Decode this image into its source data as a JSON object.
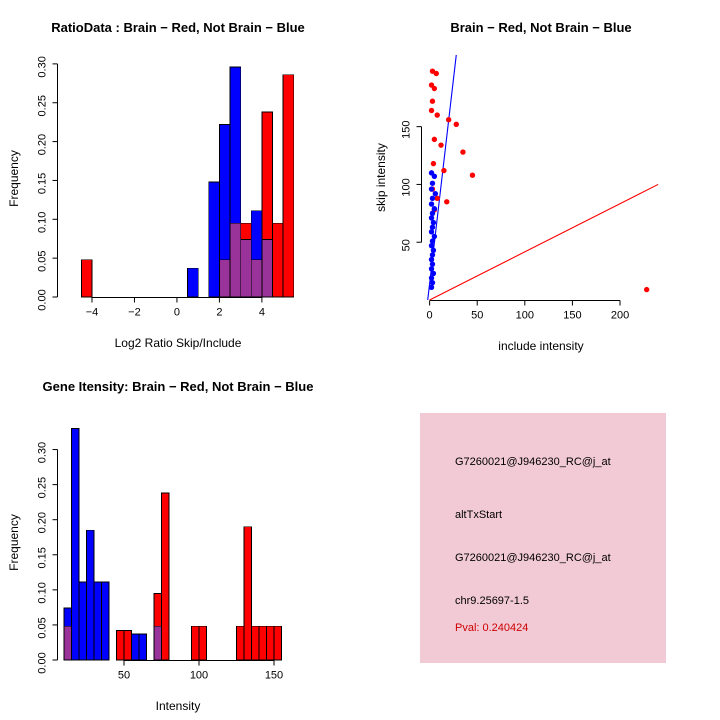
{
  "colors": {
    "red": "#FF0000",
    "blue": "#0000FF",
    "overlap": "#993399",
    "black": "#000000",
    "pval_red": "#CC0000",
    "info_bg": "#F2CAD5",
    "axis": "#000000",
    "background": "#FFFFFF"
  },
  "chart_data": [
    {
      "id": "ratio_hist",
      "type": "bar",
      "title": "RatioData : Brain − Red, Not Brain − Blue",
      "xlabel": "Log2 Ratio Skip/Include",
      "ylabel": "Frequency",
      "xlim": [
        -5.6,
        5.7
      ],
      "ylim": [
        0,
        0.305
      ],
      "xticks": [
        -4,
        -2,
        0,
        2,
        4
      ],
      "xtick_labels": [
        "−4",
        "−2",
        "0",
        "2",
        "4"
      ],
      "yticks": [
        0,
        0.05,
        0.1,
        0.15,
        0.2,
        0.25,
        0.3
      ],
      "ytick_labels": [
        "0.00",
        "0.05",
        "0.10",
        "0.15",
        "0.20",
        "0.25",
        "0.30"
      ],
      "legend_note": "Brain = red, Not Brain = blue, overlap = purple",
      "series": [
        {
          "name": "not_brain_blue",
          "color_key": "blue",
          "bins": [
            {
              "x": 0.5,
              "w": 0.5,
              "h": 0.037
            },
            {
              "x": 1.5,
              "w": 0.5,
              "h": 0.148
            },
            {
              "x": 2.0,
              "w": 0.5,
              "h": 0.222
            },
            {
              "x": 2.5,
              "w": 0.5,
              "h": 0.296
            },
            {
              "x": 3.0,
              "w": 0.5,
              "h": 0.074
            },
            {
              "x": 3.5,
              "w": 0.5,
              "h": 0.111
            },
            {
              "x": 4.0,
              "w": 0.5,
              "h": 0.074
            }
          ]
        },
        {
          "name": "brain_red",
          "color_key": "red",
          "bins": [
            {
              "x": -4.5,
              "w": 0.5,
              "h": 0.048
            },
            {
              "x": 2.0,
              "w": 0.5,
              "h": 0.048
            },
            {
              "x": 2.5,
              "w": 0.5,
              "h": 0.095
            },
            {
              "x": 3.0,
              "w": 0.5,
              "h": 0.095
            },
            {
              "x": 3.5,
              "w": 0.5,
              "h": 0.048
            },
            {
              "x": 4.0,
              "w": 0.5,
              "h": 0.238
            },
            {
              "x": 4.5,
              "w": 0.5,
              "h": 0.095
            },
            {
              "x": 5.0,
              "w": 0.5,
              "h": 0.286
            }
          ]
        },
        {
          "name": "overlap",
          "color_key": "overlap",
          "bins": [
            {
              "x": 2.0,
              "w": 0.5,
              "h": 0.048
            },
            {
              "x": 2.5,
              "w": 0.5,
              "h": 0.095
            },
            {
              "x": 3.0,
              "w": 0.5,
              "h": 0.074
            },
            {
              "x": 3.5,
              "w": 0.5,
              "h": 0.048
            },
            {
              "x": 4.0,
              "w": 0.5,
              "h": 0.074
            }
          ]
        }
      ]
    },
    {
      "id": "intensity_scatter",
      "type": "scatter",
      "title": "Brain − Red, Not Brain − Blue",
      "xlabel": "include intensity",
      "ylabel": "skip intensity",
      "xlim": [
        -8,
        242
      ],
      "ylim": [
        0,
        212
      ],
      "xticks": [
        0,
        50,
        100,
        150,
        200
      ],
      "xtick_labels": [
        "0",
        "50",
        "100",
        "150",
        "200"
      ],
      "yticks": [
        50,
        100,
        150
      ],
      "ytick_labels": [
        "50",
        "100",
        "150"
      ],
      "series": [
        {
          "name": "brain_red",
          "color_key": "red",
          "points": [
            [
              3,
              198
            ],
            [
              7,
              196
            ],
            [
              2,
              186
            ],
            [
              5,
              183
            ],
            [
              3,
              172
            ],
            [
              2,
              164
            ],
            [
              8,
              160
            ],
            [
              20,
              156
            ],
            [
              28,
              152
            ],
            [
              5,
              139
            ],
            [
              12,
              134
            ],
            [
              35,
              128
            ],
            [
              4,
              118
            ],
            [
              15,
              112
            ],
            [
              45,
              108
            ],
            [
              3,
              96
            ],
            [
              8,
              88
            ],
            [
              18,
              85
            ],
            [
              5,
              78
            ],
            [
              228,
              9
            ]
          ]
        },
        {
          "name": "not_brain_blue",
          "color_key": "blue",
          "points": [
            [
              2,
              110
            ],
            [
              5,
              107
            ],
            [
              3,
              101
            ],
            [
              2,
              96
            ],
            [
              6,
              92
            ],
            [
              3,
              88
            ],
            [
              2,
              83
            ],
            [
              5,
              79
            ],
            [
              3,
              75
            ],
            [
              2,
              71
            ],
            [
              4,
              67
            ],
            [
              3,
              63
            ],
            [
              2,
              59
            ],
            [
              5,
              55
            ],
            [
              3,
              51
            ],
            [
              2,
              47
            ],
            [
              4,
              43
            ],
            [
              3,
              39
            ],
            [
              2,
              35
            ],
            [
              3,
              31
            ],
            [
              2,
              27
            ],
            [
              4,
              23
            ],
            [
              2,
              19
            ],
            [
              3,
              15
            ],
            [
              2,
              11
            ]
          ]
        }
      ],
      "lines": [
        {
          "name": "blue_fit_line",
          "color_key": "blue",
          "x1": -2,
          "y1": 0,
          "x2": 28,
          "y2": 212
        },
        {
          "name": "red_fit_line",
          "color_key": "red",
          "x1": 0,
          "y1": 0,
          "x2": 240,
          "y2": 100
        }
      ]
    },
    {
      "id": "gene_hist",
      "type": "bar",
      "title": "Gene Itensity: Brain − Red, Not Brain − Blue",
      "xlabel": "Intensity",
      "ylabel": "Frequency",
      "xlim": [
        6,
        166
      ],
      "ylim": [
        0,
        0.335
      ],
      "xticks": [
        50,
        100,
        150
      ],
      "xtick_labels": [
        "50",
        "100",
        "150"
      ],
      "yticks": [
        0,
        0.05,
        0.1,
        0.15,
        0.2,
        0.25,
        0.3
      ],
      "ytick_labels": [
        "0.00",
        "0.05",
        "0.10",
        "0.15",
        "0.20",
        "0.25",
        "0.30"
      ],
      "legend_note": "Brain = red, Not Brain = blue, overlap = purple",
      "series": [
        {
          "name": "not_brain_blue",
          "color_key": "blue",
          "bins": [
            {
              "x": 10,
              "w": 5,
              "h": 0.074
            },
            {
              "x": 15,
              "w": 5,
              "h": 0.33
            },
            {
              "x": 20,
              "w": 5,
              "h": 0.111
            },
            {
              "x": 25,
              "w": 5,
              "h": 0.185
            },
            {
              "x": 30,
              "w": 5,
              "h": 0.111
            },
            {
              "x": 35,
              "w": 5,
              "h": 0.111
            },
            {
              "x": 55,
              "w": 5,
              "h": 0.037
            },
            {
              "x": 60,
              "w": 5,
              "h": 0.037
            }
          ]
        },
        {
          "name": "brain_red",
          "color_key": "red",
          "bins": [
            {
              "x": 10,
              "w": 5,
              "h": 0.048
            },
            {
              "x": 45,
              "w": 5,
              "h": 0.042
            },
            {
              "x": 50,
              "w": 5,
              "h": 0.042
            },
            {
              "x": 70,
              "w": 5,
              "h": 0.095
            },
            {
              "x": 75,
              "w": 5,
              "h": 0.238
            },
            {
              "x": 95,
              "w": 5,
              "h": 0.048
            },
            {
              "x": 100,
              "w": 5,
              "h": 0.048
            },
            {
              "x": 125,
              "w": 5,
              "h": 0.048
            },
            {
              "x": 130,
              "w": 5,
              "h": 0.19
            },
            {
              "x": 135,
              "w": 5,
              "h": 0.048
            },
            {
              "x": 140,
              "w": 5,
              "h": 0.048
            },
            {
              "x": 145,
              "w": 5,
              "h": 0.048
            },
            {
              "x": 150,
              "w": 5,
              "h": 0.048
            }
          ]
        },
        {
          "name": "overlap",
          "color_key": "overlap",
          "bins": [
            {
              "x": 10,
              "w": 5,
              "h": 0.048
            },
            {
              "x": 70,
              "w": 5,
              "h": 0.048
            }
          ]
        }
      ]
    }
  ],
  "info_panel": {
    "bg_key": "info_bg",
    "lines": [
      {
        "text": "G7260021@J946230_RC@j_at",
        "color_key": "black"
      },
      {
        "text": "altTxStart",
        "color_key": "black"
      },
      {
        "text": "G7260021@J946230_RC@j_at",
        "color_key": "black"
      },
      {
        "text": "chr9.25697-1.5",
        "color_key": "black"
      },
      {
        "text": "Pval: 0.240424",
        "color_key": "pval_red"
      }
    ]
  }
}
